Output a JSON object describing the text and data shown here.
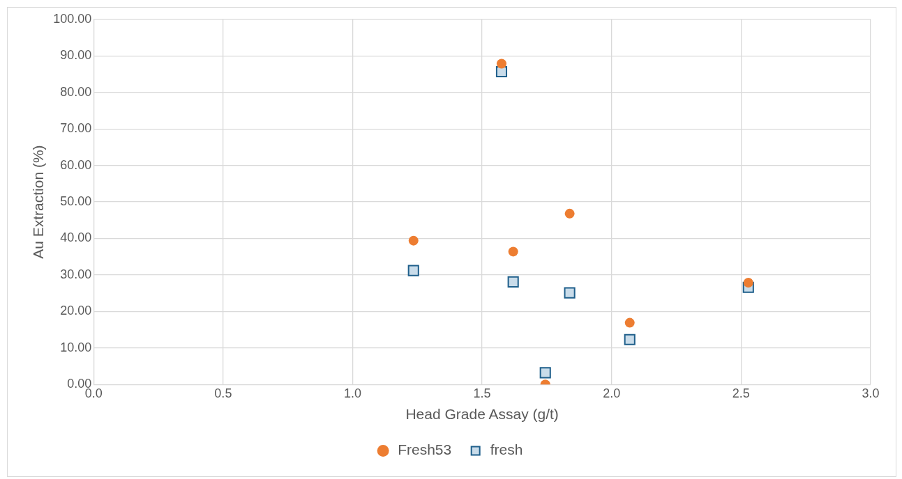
{
  "chart_data": {
    "type": "scatter",
    "xlabel": "Head Grade Assay (g/t)",
    "ylabel": "Au Extraction (%)",
    "series": [
      {
        "name": "fresh",
        "color": "#1f5f8b",
        "marker": "square",
        "x": [
          1.235,
          1.575,
          1.62,
          1.838,
          1.744,
          2.07,
          2.528
        ],
        "values": [
          31.2,
          85.7,
          28.1,
          25.1,
          3.2,
          12.3,
          26.6
        ]
      },
      {
        "name": "Fresh53",
        "color": "#ed7d31",
        "marker": "circle",
        "x": [
          1.235,
          1.575,
          1.62,
          1.838,
          1.744,
          2.07,
          2.528
        ],
        "values": [
          39.4,
          87.9,
          36.4,
          46.8,
          0,
          16.9,
          27.9
        ]
      }
    ],
    "xlim": [
      0,
      3
    ],
    "xticks": [
      {
        "value": 0,
        "label": "0.0"
      },
      {
        "value": 0.5,
        "label": "0.5"
      },
      {
        "value": 1,
        "label": "1.0"
      },
      {
        "value": 1.5,
        "label": "1.5"
      },
      {
        "value": 2,
        "label": "2.0"
      },
      {
        "value": 2.5,
        "label": "2.5"
      },
      {
        "value": 3,
        "label": "3.0"
      }
    ],
    "ylim": [
      0,
      100
    ],
    "yticks": [
      {
        "value": 0,
        "label": "0.00"
      },
      {
        "value": 10,
        "label": "10.00"
      },
      {
        "value": 20,
        "label": "20.00"
      },
      {
        "value": 30,
        "label": "30.00"
      },
      {
        "value": 40,
        "label": "40.00"
      },
      {
        "value": 50,
        "label": "50.00"
      },
      {
        "value": 60,
        "label": "60.00"
      },
      {
        "value": 70,
        "label": "70.00"
      },
      {
        "value": 80,
        "label": "80.00"
      },
      {
        "value": 90,
        "label": "90.00"
      },
      {
        "value": 100,
        "label": "100.00"
      }
    ],
    "grid": true,
    "legend": "bottom"
  }
}
